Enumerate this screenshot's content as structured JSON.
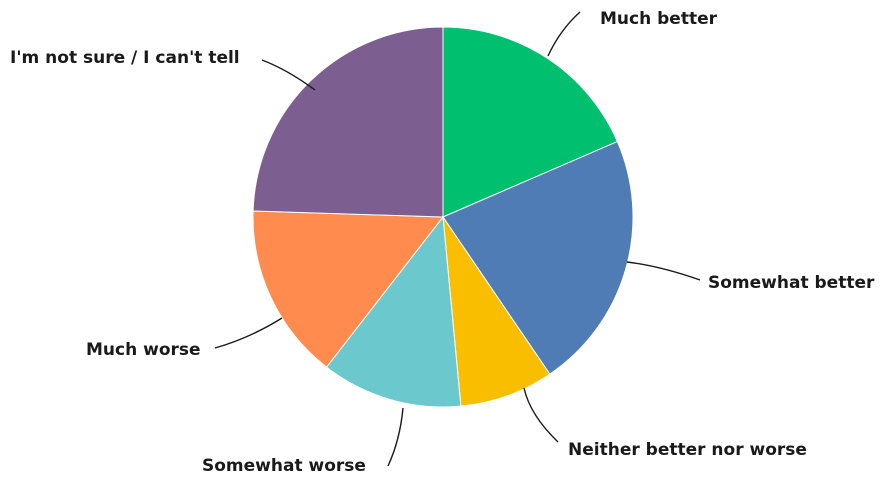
{
  "chart_data": {
    "type": "pie",
    "slices": [
      {
        "label": "Much better",
        "value": 18.5,
        "color": "#00BF6F"
      },
      {
        "label": "Somewhat better",
        "value": 22.0,
        "color": "#507CB6"
      },
      {
        "label": "Neither better nor worse",
        "value": 8.0,
        "color": "#F9BE00"
      },
      {
        "label": "Somewhat worse",
        "value": 12.0,
        "color": "#6BC8CD"
      },
      {
        "label": "Much worse",
        "value": 15.0,
        "color": "#FF8B4F"
      },
      {
        "label": "I'm not sure / I can't tell",
        "value": 24.5,
        "color": "#7D5E90"
      }
    ],
    "start_angle": "12 o'clock",
    "direction": "clockwise",
    "legend": "none"
  }
}
